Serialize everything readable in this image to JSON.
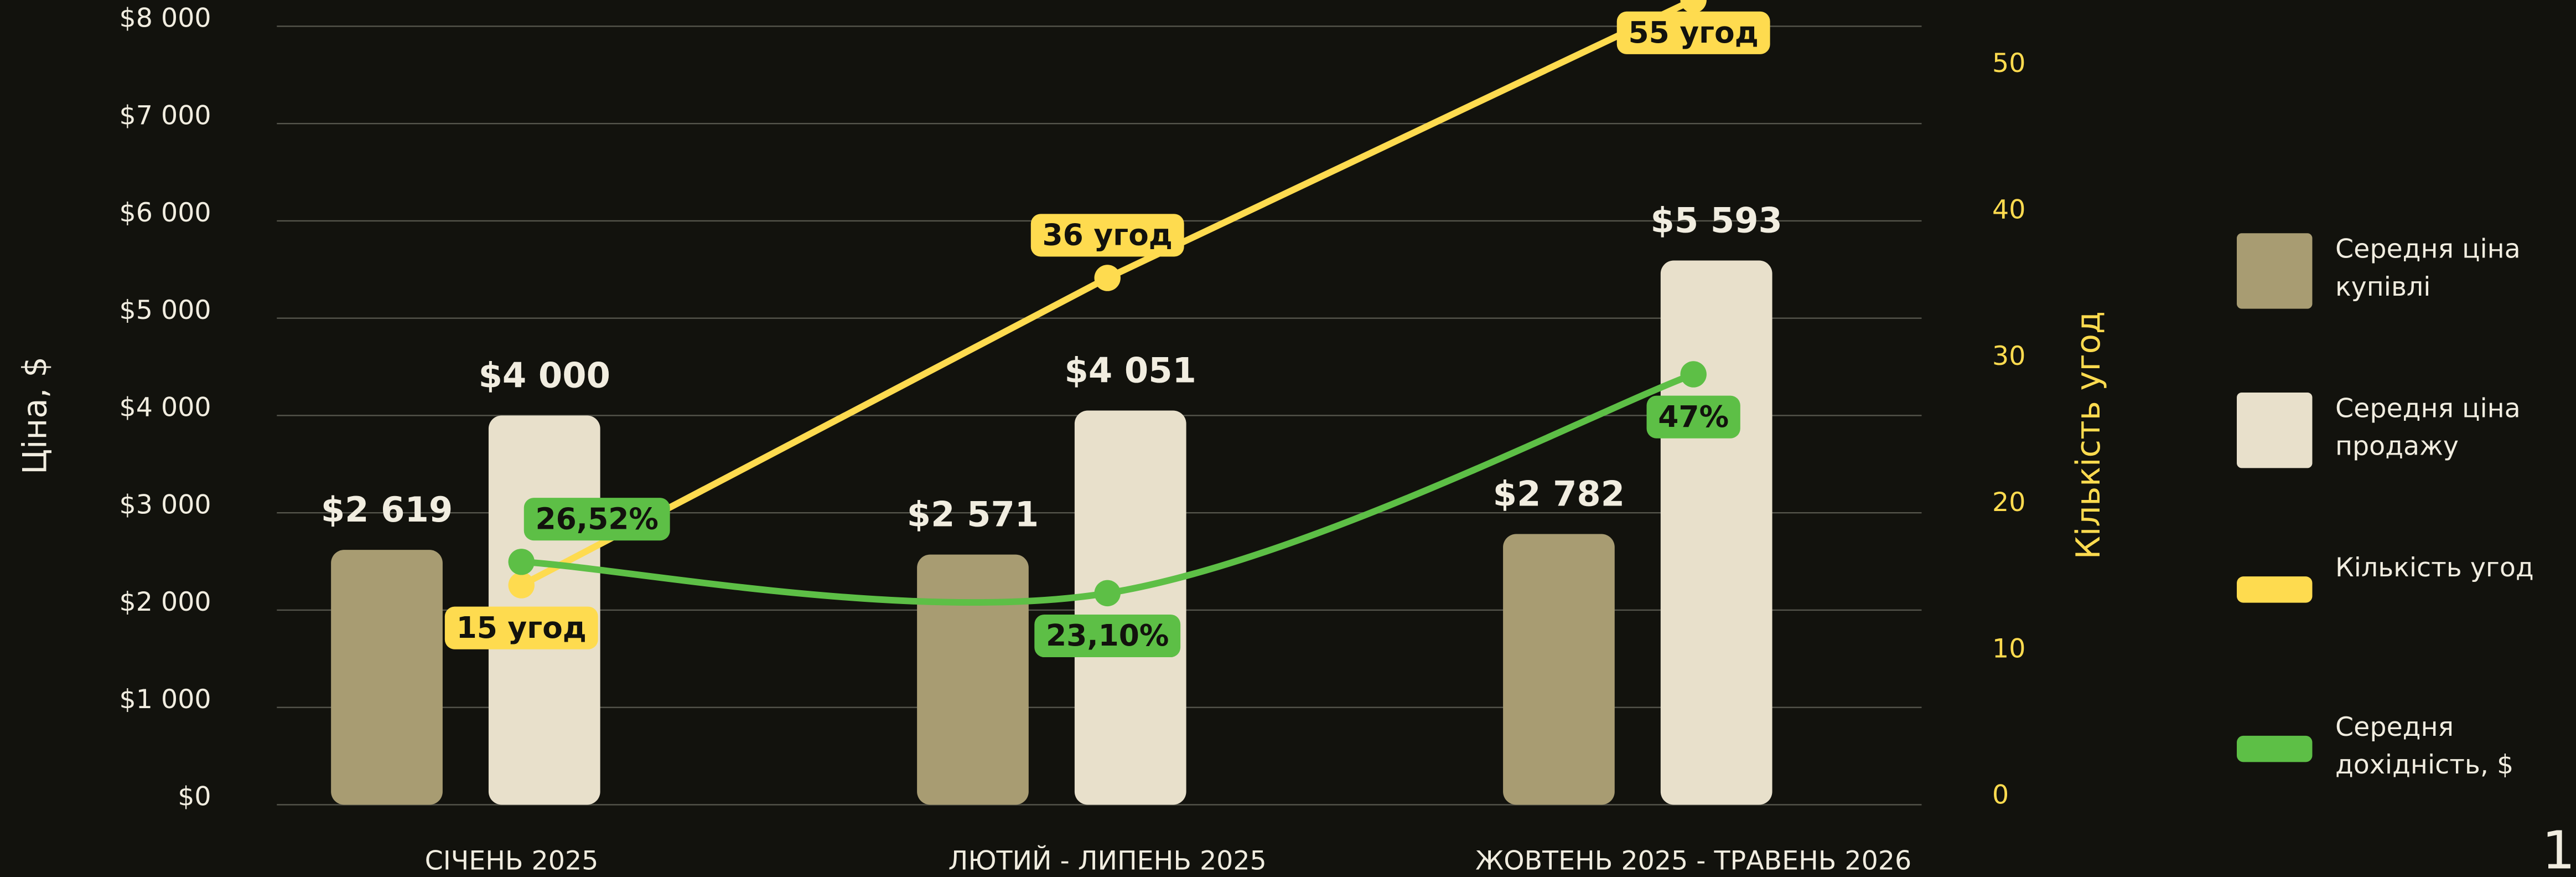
{
  "chart_data": {
    "type": "combo",
    "categories": [
      "СІЧЕНЬ 2025",
      "ЛЮТИЙ - ЛИПЕНЬ 2025",
      "ЖОВТЕНЬ 2025 - ТРАВЕНЬ 2026"
    ],
    "ylabel": "Ціна, $",
    "y2label": "Кількість угод",
    "ylim": [
      0,
      8000
    ],
    "yticks": [
      {
        "value": 0,
        "label": "$0"
      },
      {
        "value": 1000,
        "label": "$1 000"
      },
      {
        "value": 2000,
        "label": "$2 000"
      },
      {
        "value": 3000,
        "label": "$3 000"
      },
      {
        "value": 4000,
        "label": "$4 000"
      },
      {
        "value": 5000,
        "label": "$5 000"
      },
      {
        "value": 6000,
        "label": "$6 000"
      },
      {
        "value": 7000,
        "label": "$7 000"
      },
      {
        "value": 8000,
        "label": "$8 000"
      }
    ],
    "y2lim": [
      0,
      53.2
    ],
    "y2ticks": [
      0,
      10,
      20,
      30,
      40,
      50
    ],
    "y3lim": [
      0,
      85
    ],
    "grid": true,
    "legend": "right",
    "series": [
      {
        "name": "Середня ціна купівлі",
        "type": "bar",
        "color": "#a89c72",
        "values": [
          2619,
          2571,
          2782
        ],
        "value_labels": [
          "$2 619",
          "$2 571",
          "$2 782"
        ]
      },
      {
        "name": "Середня ціна продажу",
        "type": "bar",
        "color": "#e8e0cb",
        "values": [
          4000,
          4051,
          5593
        ],
        "value_labels": [
          "$4 000",
          "$4 051",
          "$5 593"
        ]
      },
      {
        "name": "Кількість угод",
        "type": "line",
        "axis": "y2",
        "color": "#fedb4f",
        "values": [
          15,
          36,
          55
        ],
        "value_labels": [
          "15 угод",
          "36 угод",
          "55 угод"
        ]
      },
      {
        "name": "Середня дохідність, $",
        "type": "line",
        "axis": "y3",
        "color": "#5dbf46",
        "values": [
          26.52,
          23.1,
          47
        ],
        "value_labels": [
          "26,52%",
          "23,10%",
          "47%"
        ]
      }
    ]
  },
  "page_number": "1"
}
